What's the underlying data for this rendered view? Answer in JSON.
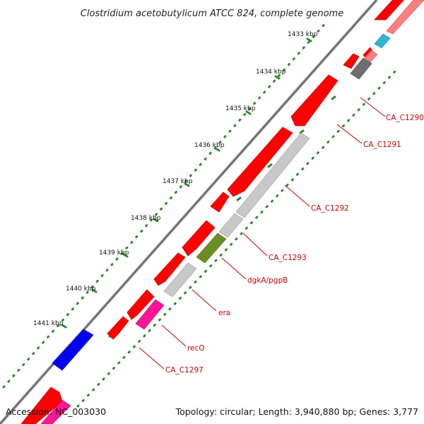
{
  "title": "Clostridium acetobutylicum ATCC 824, complete genome",
  "accession": "Accession: NC_003030",
  "topology": "Topology: circular; Length: 3,940,880 bp; Genes: 3,777",
  "ticks": [
    "1433 kbp",
    "1434 kbp",
    "1435 kbp",
    "1436 kbp",
    "1437 kbp",
    "1438 kbp",
    "1439 kbp",
    "1440 kbp",
    "1441 kbp"
  ],
  "gene_labels": [
    "CA_C1290",
    "CA_C1291",
    "CA_C1292",
    "CA_C1293",
    "dgkA/pgpB",
    "era",
    "recO",
    "CA_C1297"
  ],
  "colors": {
    "cds_forward": "#ff0000",
    "cds_reverse_light": "#ff8080",
    "gray_gene": "#c8c8c8",
    "dark_gray_gene": "#6e6e6e",
    "cyan_gene": "#2bb7d6",
    "olive_gene": "#6b8e23",
    "magenta_gene": "#ff1493",
    "blue_gene": "#0000ee",
    "backbone": "#777777",
    "dots": "#2e8b2e",
    "label": "#cc0000"
  }
}
